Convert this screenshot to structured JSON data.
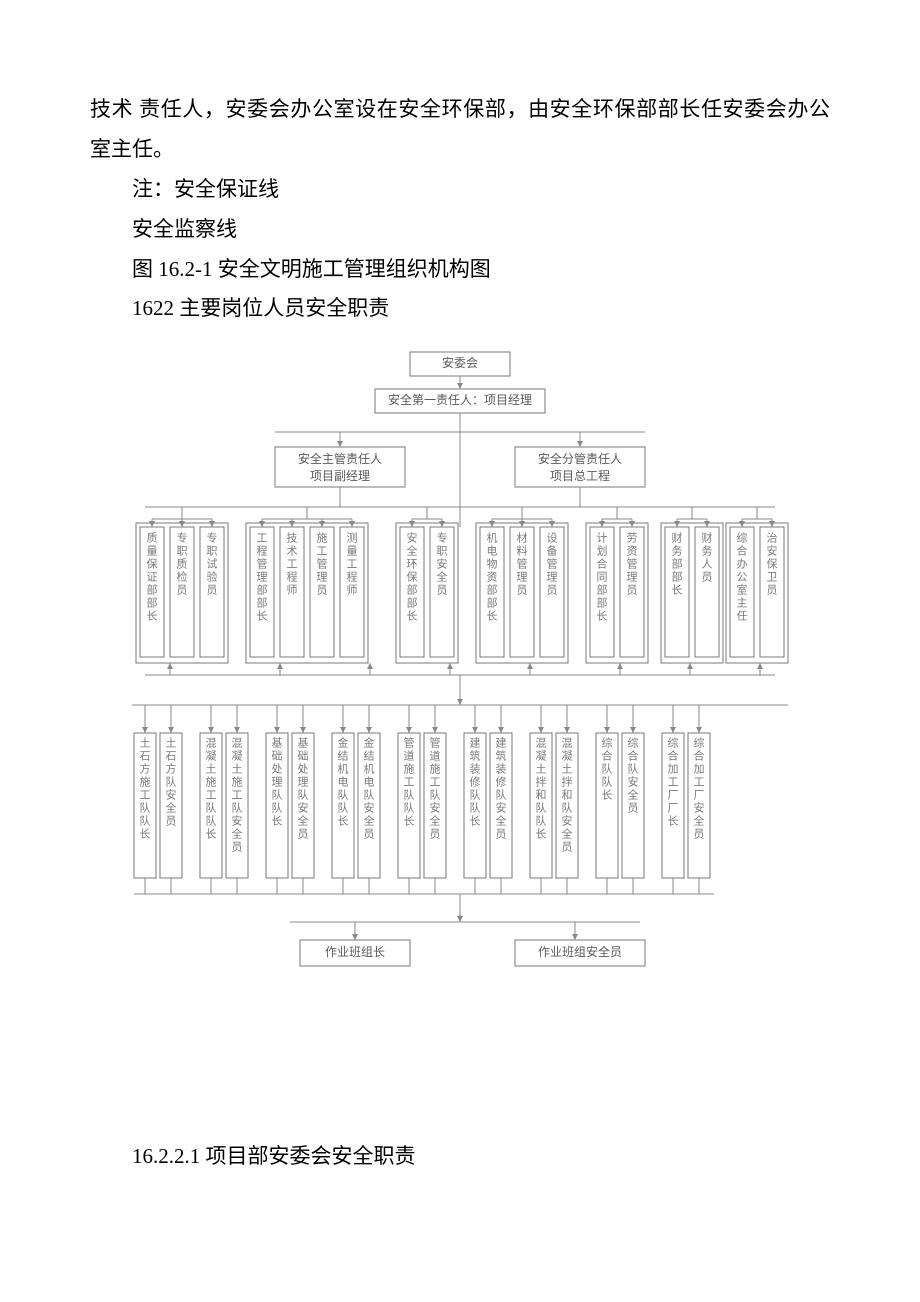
{
  "text": {
    "p1": "技术 责任人，安委会办公室设在安全环保部，由安全环保部部长任安委会办公室主任。",
    "p2": "注：安全保证线",
    "p3": "安全监察线",
    "p4": "图 16.2-1 安全文明施工管理组织机构图",
    "p5": "1622 主要岗位人员安全职责",
    "p6": "16.2.2.1 项目部安委会安全职责"
  },
  "chart": {
    "type": "flowchart",
    "background": "#ffffff",
    "node_border": "#7a7a7a",
    "node_fill": "#ffffff",
    "text_color": "#5a5a5a",
    "edge_color": "#888888",
    "top": {
      "n1": "安委会",
      "n2": "安全第一责任人：项目经理",
      "n3a": "安全主管责任人",
      "n3b": "项目副经理",
      "n4a": "安全分管责任人",
      "n4b": "项目总工程"
    },
    "mid_groups": [
      {
        "items": [
          {
            "t": "质量保证部部长"
          },
          {
            "t": "专职质检员"
          },
          {
            "t": "专职试验员"
          }
        ]
      },
      {
        "items": [
          {
            "t": "工程管理部部长"
          },
          {
            "t": "技术工程师"
          },
          {
            "t": "施工管理员"
          },
          {
            "t": "测量工程师"
          }
        ]
      },
      {
        "items": [
          {
            "t": "安全环保部部长"
          },
          {
            "t": "专职安全员"
          }
        ]
      },
      {
        "items": [
          {
            "t": "机电物资部部长"
          },
          {
            "t": "材料管理员"
          },
          {
            "t": "设备管理员"
          }
        ]
      },
      {
        "items": [
          {
            "t": "计划合同部部长"
          },
          {
            "t": "劳资管理员"
          }
        ]
      },
      {
        "items": [
          {
            "t": "财务部部长"
          },
          {
            "t": "财务人员"
          }
        ]
      },
      {
        "items": [
          {
            "t": "综合办公室主任"
          },
          {
            "t": "治安保卫员"
          }
        ]
      }
    ],
    "low": [
      {
        "t": "土石方施工队队长"
      },
      {
        "t": "土石方队安全员"
      },
      {
        "t": "混凝土施工队队长"
      },
      {
        "t": "混凝土施工队安全员"
      },
      {
        "t": "基础处理队队长"
      },
      {
        "t": "基础处理队安全员"
      },
      {
        "t": "金结机电队队长"
      },
      {
        "t": "金结机电队安全员"
      },
      {
        "t": "管道施工队队长"
      },
      {
        "t": "管道施工队安全员"
      },
      {
        "t": "建筑装修队队长"
      },
      {
        "t": "建筑装修队安全员"
      },
      {
        "t": "混凝土拌和队队长"
      },
      {
        "t": "混凝土拌和队安全员"
      },
      {
        "t": "综合队队长"
      },
      {
        "t": "综合队安全员"
      },
      {
        "t": "综合加工厂厂长"
      },
      {
        "t": "综合加工厂安全员"
      }
    ],
    "bottom": {
      "b1": "作业班组长",
      "b2": "作业班组安全员"
    }
  }
}
